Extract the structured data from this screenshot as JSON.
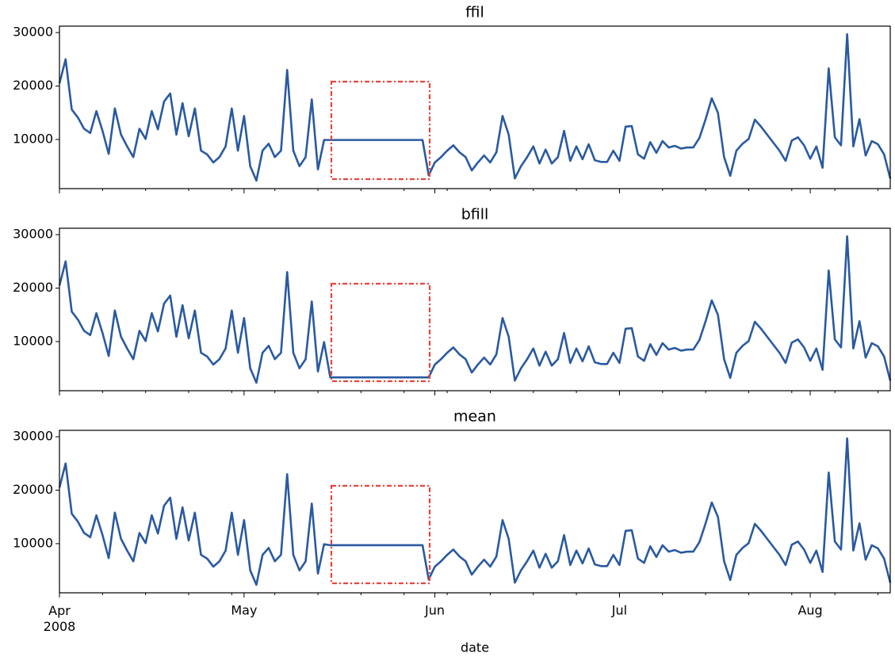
{
  "chart_data": [
    {
      "type": "line",
      "title": "ffil",
      "color": "#2a5aa0",
      "xlim": [
        0,
        135
      ],
      "xticks": [
        0,
        30,
        61,
        91,
        122
      ],
      "ylim": [
        800,
        31200
      ],
      "yticks": [
        10000,
        20000,
        30000
      ],
      "values": [
        20500,
        25000,
        15600,
        14100,
        12000,
        11200,
        15300,
        11600,
        7300,
        15800,
        10900,
        8700,
        6700,
        12000,
        10100,
        15300,
        11900,
        17100,
        18600,
        10900,
        16800,
        10600,
        15800,
        7900,
        7200,
        5700,
        6700,
        8700,
        15800,
        7900,
        14400,
        5000,
        2300,
        7900,
        9200,
        6700,
        7900,
        23000,
        7900,
        5000,
        6700,
        17500,
        4400,
        9900,
        9900,
        9900,
        9900,
        9900,
        9900,
        9900,
        9900,
        9900,
        9900,
        9900,
        9900,
        9900,
        9900,
        9900,
        9900,
        9900,
        3300,
        5700,
        6700,
        7900,
        8900,
        7600,
        6700,
        4200,
        5700,
        7000,
        5700,
        7600,
        14400,
        10900,
        2700,
        5000,
        6700,
        8700,
        5500,
        8100,
        5500,
        6700,
        11600,
        6000,
        8700,
        6300,
        9100,
        6100,
        5800,
        5800,
        7900,
        6000,
        12400,
        12500,
        7200,
        6400,
        9500,
        7500,
        9700,
        8500,
        8800,
        8300,
        8500,
        8500,
        10300,
        13800,
        17700,
        15000,
        6700,
        3200,
        7900,
        9200,
        10100,
        13700,
        12400,
        10900,
        9400,
        7900,
        6000,
        9800,
        10400,
        8900,
        6400,
        8700,
        4700,
        23300,
        10400,
        8900,
        29700,
        8700,
        13800,
        7000,
        9700,
        9100,
        7200,
        2700
      ]
    },
    {
      "type": "line",
      "title": "bfill",
      "color": "#2a5aa0",
      "xlim": [
        0,
        135
      ],
      "xticks": [
        0,
        30,
        61,
        91,
        122
      ],
      "ylim": [
        800,
        31200
      ],
      "yticks": [
        10000,
        20000,
        30000
      ],
      "values": [
        20500,
        25000,
        15600,
        14100,
        12000,
        11200,
        15300,
        11600,
        7300,
        15800,
        10900,
        8700,
        6700,
        12000,
        10100,
        15300,
        11900,
        17100,
        18600,
        10900,
        16800,
        10600,
        15800,
        7900,
        7200,
        5700,
        6700,
        8700,
        15800,
        7900,
        14400,
        5000,
        2300,
        7900,
        9200,
        6700,
        7900,
        23000,
        7900,
        5000,
        6700,
        17500,
        4400,
        9900,
        3300,
        3300,
        3300,
        3300,
        3300,
        3300,
        3300,
        3300,
        3300,
        3300,
        3300,
        3300,
        3300,
        3300,
        3300,
        3300,
        3300,
        5700,
        6700,
        7900,
        8900,
        7600,
        6700,
        4200,
        5700,
        7000,
        5700,
        7600,
        14400,
        10900,
        2700,
        5000,
        6700,
        8700,
        5500,
        8100,
        5500,
        6700,
        11600,
        6000,
        8700,
        6300,
        9100,
        6100,
        5800,
        5800,
        7900,
        6000,
        12400,
        12500,
        7200,
        6400,
        9500,
        7500,
        9700,
        8500,
        8800,
        8300,
        8500,
        8500,
        10300,
        13800,
        17700,
        15000,
        6700,
        3200,
        7900,
        9200,
        10100,
        13700,
        12400,
        10900,
        9400,
        7900,
        6000,
        9800,
        10400,
        8900,
        6400,
        8700,
        4700,
        23300,
        10400,
        8900,
        29700,
        8700,
        13800,
        7000,
        9700,
        9100,
        7200,
        2700
      ]
    },
    {
      "type": "line",
      "title": "mean",
      "color": "#2a5aa0",
      "xlim": [
        0,
        135
      ],
      "xlabel": "date",
      "xticks": [
        {
          "value": 0,
          "label": "Apr\n2008"
        },
        {
          "value": 30,
          "label": "May"
        },
        {
          "value": 61,
          "label": "Jun"
        },
        {
          "value": 91,
          "label": "Jul"
        },
        {
          "value": 122,
          "label": "Aug"
        }
      ],
      "ylim": [
        800,
        31200
      ],
      "yticks": [
        10000,
        20000,
        30000
      ],
      "values": [
        20500,
        25000,
        15600,
        14100,
        12000,
        11200,
        15300,
        11600,
        7300,
        15800,
        10900,
        8700,
        6700,
        12000,
        10100,
        15300,
        11900,
        17100,
        18600,
        10900,
        16800,
        10600,
        15800,
        7900,
        7200,
        5700,
        6700,
        8700,
        15800,
        7900,
        14400,
        5000,
        2300,
        7900,
        9200,
        6700,
        7900,
        23000,
        7900,
        5000,
        6700,
        17500,
        4400,
        9900,
        9700,
        9700,
        9700,
        9700,
        9700,
        9700,
        9700,
        9700,
        9700,
        9700,
        9700,
        9700,
        9700,
        9700,
        9700,
        9700,
        3300,
        5700,
        6700,
        7900,
        8900,
        7600,
        6700,
        4200,
        5700,
        7000,
        5700,
        7600,
        14400,
        10900,
        2700,
        5000,
        6700,
        8700,
        5500,
        8100,
        5500,
        6700,
        11600,
        6000,
        8700,
        6300,
        9100,
        6100,
        5800,
        5800,
        7900,
        6000,
        12400,
        12500,
        7200,
        6400,
        9500,
        7500,
        9700,
        8500,
        8800,
        8300,
        8500,
        8500,
        10300,
        13800,
        17700,
        15000,
        6700,
        3200,
        7900,
        9200,
        10100,
        13700,
        12400,
        10900,
        9400,
        7900,
        6000,
        9800,
        10400,
        8900,
        6400,
        8700,
        4700,
        23300,
        10400,
        8900,
        29700,
        8700,
        13800,
        7000,
        9700,
        9100,
        7200,
        2700
      ]
    }
  ]
}
